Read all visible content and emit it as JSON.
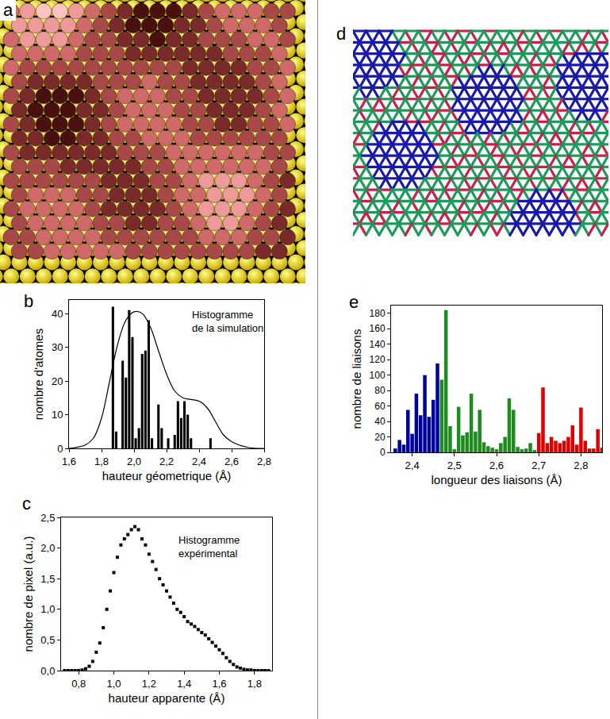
{
  "chart_data": [
    {
      "type": "histogram",
      "panel_label": "b",
      "annotation": [
        "Histogramme",
        "de la simulation"
      ],
      "xlabel": "hauteur géometrique (Å)",
      "ylabel": "nombre d'atomes",
      "bins": [
        1.86,
        1.88,
        1.9,
        1.92,
        1.94,
        1.96,
        1.98,
        2.0,
        2.02,
        2.04,
        2.06,
        2.08,
        2.1,
        2.12,
        2.14,
        2.16,
        2.18,
        2.2,
        2.22,
        2.24,
        2.26,
        2.28,
        2.3,
        2.32,
        2.34,
        2.36,
        2.38,
        2.4,
        2.42,
        2.44,
        2.46,
        2.48,
        2.5,
        2.52,
        2.54
      ],
      "values": [
        42,
        5,
        0,
        26,
        21,
        41,
        33,
        3,
        6,
        28,
        29,
        38,
        3,
        0,
        13,
        6,
        0,
        3,
        0,
        4,
        14,
        9,
        14,
        10,
        3,
        0,
        0,
        0,
        0,
        0,
        3,
        0,
        0,
        0
      ],
      "color": "#000000",
      "curve": {
        "type": "line",
        "color": "#000000",
        "x": [
          1.6,
          1.7,
          1.75,
          1.8,
          1.85,
          1.9,
          1.95,
          2.0,
          2.05,
          2.1,
          2.15,
          2.2,
          2.25,
          2.3,
          2.35,
          2.4,
          2.45,
          2.5,
          2.55,
          2.6,
          2.7,
          2.8
        ],
        "values": [
          0,
          1,
          3,
          9,
          20,
          31,
          38,
          40.5,
          40,
          36,
          29,
          22,
          17,
          15,
          14.5,
          14,
          12,
          8,
          4,
          2,
          0.3,
          0
        ]
      },
      "xlim": [
        1.6,
        2.8
      ],
      "xticks": [
        {
          "value": 1.6,
          "label": "1,6"
        },
        {
          "value": 1.8,
          "label": "1,8"
        },
        {
          "value": 2.0,
          "label": "2,0"
        },
        {
          "value": 2.2,
          "label": "2,2"
        },
        {
          "value": 2.4,
          "label": "2,4"
        },
        {
          "value": 2.6,
          "label": "2,6"
        },
        {
          "value": 2.8,
          "label": "2,8"
        }
      ],
      "ylim": [
        0,
        44
      ],
      "yticks": [
        0,
        10,
        20,
        30,
        40
      ],
      "grid": false
    },
    {
      "type": "scatter",
      "panel_label": "c",
      "marker": "square",
      "color": "#000000",
      "annotation": [
        "Histogramme",
        "expérimental"
      ],
      "xlabel": "hauteur apparente (Å)",
      "ylabel": "nombre de pixel (a.u.)",
      "x": [
        0.72,
        0.74,
        0.76,
        0.78,
        0.8,
        0.82,
        0.84,
        0.86,
        0.88,
        0.9,
        0.92,
        0.94,
        0.96,
        0.98,
        1.0,
        1.02,
        1.04,
        1.06,
        1.08,
        1.1,
        1.12,
        1.14,
        1.16,
        1.18,
        1.2,
        1.22,
        1.24,
        1.26,
        1.28,
        1.3,
        1.32,
        1.34,
        1.36,
        1.38,
        1.4,
        1.42,
        1.44,
        1.46,
        1.48,
        1.5,
        1.52,
        1.54,
        1.56,
        1.58,
        1.6,
        1.62,
        1.64,
        1.66,
        1.68,
        1.7,
        1.72,
        1.74,
        1.76,
        1.78,
        1.8,
        1.82,
        1.84,
        1.86,
        1.88
      ],
      "values": [
        0,
        0,
        0,
        0,
        0,
        0.01,
        0.03,
        0.07,
        0.15,
        0.3,
        0.45,
        0.7,
        1.0,
        1.3,
        1.6,
        1.85,
        2.05,
        2.15,
        2.22,
        2.3,
        2.35,
        2.3,
        2.15,
        2.05,
        1.9,
        1.78,
        1.65,
        1.5,
        1.4,
        1.3,
        1.2,
        1.1,
        1.0,
        0.95,
        0.88,
        0.8,
        0.76,
        0.72,
        0.67,
        0.62,
        0.58,
        0.52,
        0.46,
        0.4,
        0.34,
        0.28,
        0.21,
        0.15,
        0.1,
        0.06,
        0.04,
        0.02,
        0.01,
        0.01,
        0,
        0,
        0,
        0,
        0
      ],
      "xlim": [
        0.7,
        1.9
      ],
      "xticks": [
        {
          "value": 0.8,
          "label": "0,8"
        },
        {
          "value": 1.0,
          "label": "1,0"
        },
        {
          "value": 1.2,
          "label": "1,2"
        },
        {
          "value": 1.4,
          "label": "1,4"
        },
        {
          "value": 1.6,
          "label": "1,6"
        },
        {
          "value": 1.8,
          "label": "1,8"
        }
      ],
      "ylim": [
        0,
        2.5
      ],
      "yticks": [
        {
          "value": 0,
          "label": "0,0"
        },
        {
          "value": 0.5,
          "label": "0,5"
        },
        {
          "value": 1.0,
          "label": "1,0"
        },
        {
          "value": 1.5,
          "label": "1,5"
        },
        {
          "value": 2.0,
          "label": "2,0"
        },
        {
          "value": 2.5,
          "label": "2,5"
        }
      ],
      "grid": false
    },
    {
      "type": "histogram",
      "panel_label": "e",
      "xlabel": "longueur des liaisons (Å)",
      "ylabel": "nombre de liaisons",
      "series": [
        {
          "color": "#0000a0",
          "bins": [
            2.355,
            2.365,
            2.375,
            2.385,
            2.395,
            2.405,
            2.415,
            2.425,
            2.435,
            2.445,
            2.455,
            2.465
          ],
          "values": [
            5,
            16,
            10,
            55,
            24,
            76,
            48,
            100,
            46,
            68,
            115
          ]
        },
        {
          "color": "#1e8c1e",
          "bins": [
            2.465,
            2.475,
            2.485,
            2.495,
            2.505,
            2.515,
            2.525,
            2.535,
            2.545,
            2.555,
            2.565,
            2.575,
            2.585,
            2.595,
            2.605,
            2.615,
            2.625,
            2.635,
            2.645,
            2.655,
            2.665,
            2.675,
            2.685,
            2.695
          ],
          "values": [
            94,
            184,
            34,
            4,
            59,
            22,
            26,
            76,
            27,
            55,
            13,
            8,
            6,
            4,
            12,
            20,
            70,
            55,
            7,
            4,
            5,
            12,
            3
          ]
        },
        {
          "color": "#e00000",
          "bins": [
            2.695,
            2.705,
            2.715,
            2.725,
            2.735,
            2.745,
            2.755,
            2.765,
            2.775,
            2.785,
            2.795,
            2.805,
            2.815,
            2.825,
            2.835,
            2.845,
            2.855
          ],
          "values": [
            25,
            84,
            12,
            20,
            15,
            12,
            15,
            20,
            35,
            10,
            58,
            15,
            5,
            5,
            30,
            6
          ]
        }
      ],
      "xlim": [
        2.35,
        2.85
      ],
      "xticks": [
        {
          "value": 2.4,
          "label": "2,4"
        },
        {
          "value": 2.5,
          "label": "2,5"
        },
        {
          "value": 2.6,
          "label": "2,6"
        },
        {
          "value": 2.7,
          "label": "2,7"
        },
        {
          "value": 2.8,
          "label": "2,8"
        }
      ],
      "ylim": [
        0,
        190
      ],
      "yticks": [
        0,
        20,
        40,
        60,
        80,
        100,
        120,
        140,
        160,
        180
      ],
      "grid": false
    }
  ],
  "diagrams": [
    {
      "panel_label": "a"
    },
    {
      "panel_label": "d"
    }
  ]
}
